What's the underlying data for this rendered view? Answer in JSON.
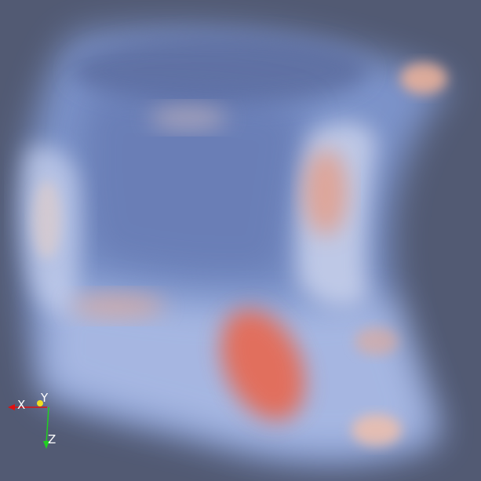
{
  "viewport": {
    "background_color": "#525a73",
    "content": "volume-rendering"
  },
  "colormap": {
    "low": "#6f8fe0",
    "mid": "#d8dcea",
    "high": "#e8684f"
  },
  "orientation_axes": {
    "x_label": "X",
    "y_label": "Y",
    "z_label": "Z",
    "x_color": "#e01010",
    "y_color": "#f0e020",
    "z_color": "#20d020"
  }
}
